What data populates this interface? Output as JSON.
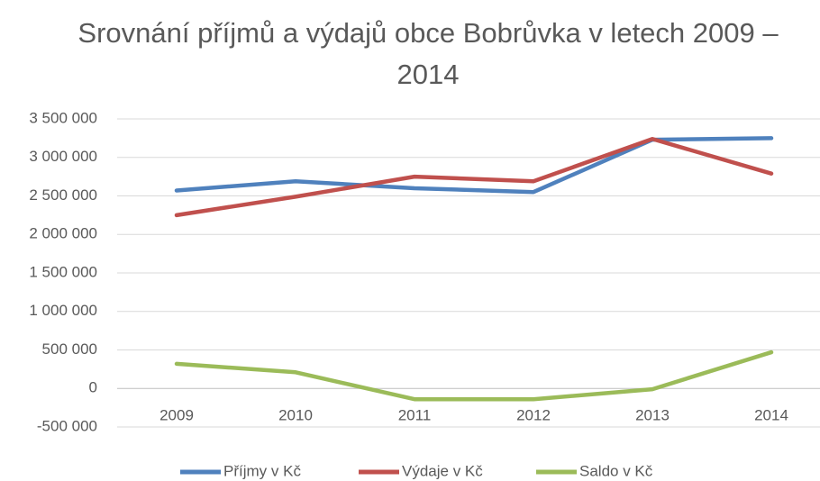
{
  "chart_data": {
    "type": "line",
    "title": "Srovnání příjmů a výdajů obce Bobrůvka v letech 2009 – 2014",
    "categories": [
      "2009",
      "2010",
      "2011",
      "2012",
      "2013",
      "2014"
    ],
    "series": [
      {
        "name": "Příjmy v Kč",
        "color": "#4f81bd",
        "values": [
          2570000,
          2690000,
          2600000,
          2550000,
          3230000,
          3250000
        ]
      },
      {
        "name": "Výdaje v Kč",
        "color": "#c0504d",
        "values": [
          2250000,
          2490000,
          2750000,
          2690000,
          3240000,
          2790000
        ]
      },
      {
        "name": "Saldo v Kč",
        "color": "#9bbb59",
        "values": [
          320000,
          210000,
          -140000,
          -140000,
          -10000,
          470000
        ]
      }
    ],
    "ylim": [
      -500000,
      3500000
    ],
    "yticks": [
      {
        "value": -500000,
        "label": "-500 000"
      },
      0,
      {
        "value": 500000,
        "label": "500 000"
      },
      {
        "value": 1000000,
        "label": "1 000 000"
      },
      {
        "value": 1500000,
        "label": "1 500 000"
      },
      {
        "value": 2000000,
        "label": "2 000 000"
      },
      {
        "value": 2500000,
        "label": "2 500 000"
      },
      {
        "value": 3000000,
        "label": "3 000 000"
      },
      {
        "value": 3500000,
        "label": "3 500 000"
      }
    ],
    "grid": true,
    "legend": "bottom"
  }
}
